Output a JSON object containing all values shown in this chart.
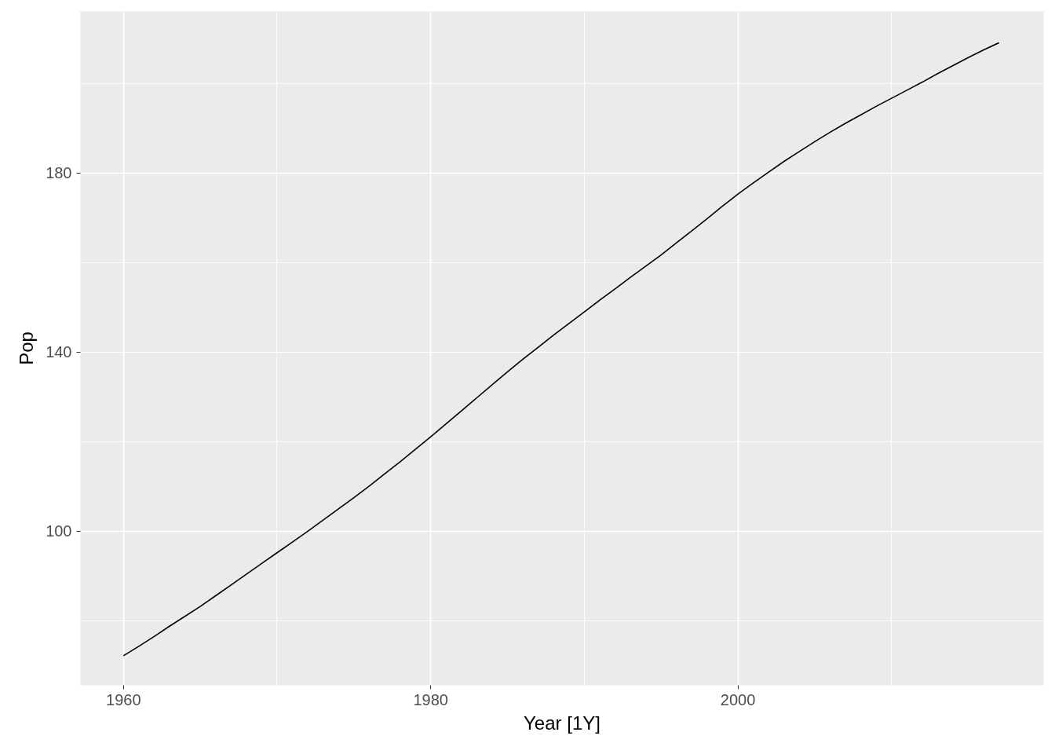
{
  "chart_data": {
    "type": "line",
    "xlabel": "Year [1Y]",
    "ylabel": "Pop",
    "x": [
      1960,
      1961,
      1962,
      1963,
      1964,
      1965,
      1966,
      1967,
      1968,
      1969,
      1970,
      1971,
      1972,
      1973,
      1974,
      1975,
      1976,
      1977,
      1978,
      1979,
      1980,
      1981,
      1982,
      1983,
      1984,
      1985,
      1986,
      1987,
      1988,
      1989,
      1990,
      1991,
      1992,
      1993,
      1994,
      1995,
      1996,
      1997,
      1998,
      1999,
      2000,
      2001,
      2002,
      2003,
      2004,
      2005,
      2006,
      2007,
      2008,
      2009,
      2010,
      2011,
      2012,
      2013,
      2014,
      2015,
      2016,
      2017
    ],
    "values": [
      72.2,
      74.3,
      76.5,
      78.8,
      81.0,
      83.2,
      85.6,
      88.0,
      90.4,
      92.8,
      95.2,
      97.6,
      100.0,
      102.5,
      105.0,
      107.5,
      110.1,
      112.8,
      115.5,
      118.3,
      121.1,
      124.0,
      126.9,
      129.8,
      132.7,
      135.6,
      138.4,
      141.1,
      143.8,
      146.4,
      149.0,
      151.6,
      154.1,
      156.7,
      159.2,
      161.7,
      164.4,
      167.1,
      169.8,
      172.6,
      175.3,
      177.8,
      180.2,
      182.6,
      184.8,
      187.0,
      189.1,
      191.1,
      193.0,
      194.9,
      196.7,
      198.5,
      200.3,
      202.2,
      204.0,
      205.8,
      207.5,
      209.1
    ],
    "color": "#000000",
    "xlim": [
      1957.2,
      2019.9
    ],
    "ylim": [
      65.6,
      216.1
    ],
    "xticks": [
      1960,
      1980,
      2000
    ],
    "yticks": [
      100,
      140,
      180
    ],
    "grid": true
  }
}
